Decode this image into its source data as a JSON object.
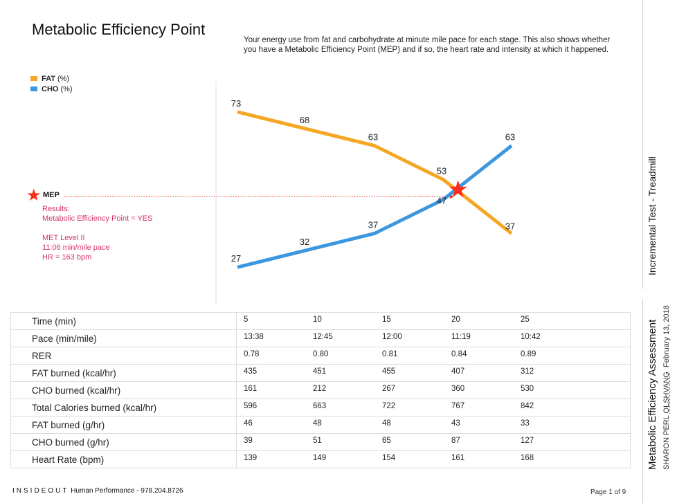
{
  "page": {
    "title": "Metabolic Efficiency Point",
    "description": "Your energy use from fat and carbohydrate at minute mile pace for each stage. This also shows whether you have a Metabolic Efficiency Point (MEP) and if so, the heart rate and intensity at which it happened."
  },
  "legend": {
    "items": [
      {
        "name": "FAT",
        "unit": "(%)",
        "color": "#f5a623"
      },
      {
        "name": "CHO",
        "unit": "(%)",
        "color": "#3b97e0"
      }
    ]
  },
  "mep": {
    "label": "MEP",
    "icon": "star-icon",
    "results": [
      "Results:",
      "Metabolic Efficiency Point = YES",
      "",
      "MET Level II",
      "11:06 min/mile pace",
      "HR = 163 bpm"
    ]
  },
  "chart_data": {
    "type": "line",
    "title": "",
    "xlabel": "",
    "ylabel": "",
    "x": [
      5,
      10,
      15,
      20,
      25
    ],
    "ylim": [
      0,
      100
    ],
    "grid": false,
    "legend": "top-left",
    "series": [
      {
        "name": "FAT (%)",
        "values": [
          73,
          68,
          63,
          53,
          37
        ],
        "color": "#f5a623"
      },
      {
        "name": "CHO (%)",
        "values": [
          27,
          32,
          37,
          47,
          63
        ],
        "color": "#3b97e0"
      }
    ],
    "annotations": [
      {
        "label": "MEP",
        "x": 21.1,
        "y": 50,
        "marker": "star",
        "color": "#ff2a1a"
      }
    ]
  },
  "table": {
    "rows": [
      {
        "label": "Time (min)",
        "values": [
          "5",
          "10",
          "15",
          "20",
          "25"
        ]
      },
      {
        "label": "Pace (min/mile)",
        "values": [
          "13:38",
          "12:45",
          "12:00",
          "11:19",
          "10:42"
        ]
      },
      {
        "label": "RER",
        "values": [
          "0.78",
          "0.80",
          "0.81",
          "0.84",
          "0.89"
        ]
      },
      {
        "label": "FAT burned (kcal/hr)",
        "values": [
          "435",
          "451",
          "455",
          "407",
          "312"
        ]
      },
      {
        "label": "CHO burned (kcal/hr)",
        "values": [
          "161",
          "212",
          "267",
          "360",
          "530"
        ]
      },
      {
        "label": "Total Calories burned (kcal/hr)",
        "values": [
          "596",
          "663",
          "722",
          "767",
          "842"
        ]
      },
      {
        "label": "FAT burned (g/hr)",
        "values": [
          "46",
          "48",
          "48",
          "43",
          "33"
        ]
      },
      {
        "label": "CHO burned (g/hr)",
        "values": [
          "39",
          "51",
          "65",
          "87",
          "127"
        ]
      },
      {
        "label": "Heart Rate (bpm)",
        "values": [
          "139",
          "149",
          "154",
          "161",
          "168"
        ]
      }
    ]
  },
  "footer": {
    "brand": "INSIDEOUT",
    "tagline": "Human Performance - 978.204.8726",
    "page_label": "Page 1 of 9"
  },
  "side": {
    "test_type": "Incremental Test - Treadmill",
    "report_title": "Metabolic Efficiency Assessment",
    "client_first": "SHARON PERL ",
    "client_last": "OLSHVANG",
    "date": "February 13, 2018"
  }
}
